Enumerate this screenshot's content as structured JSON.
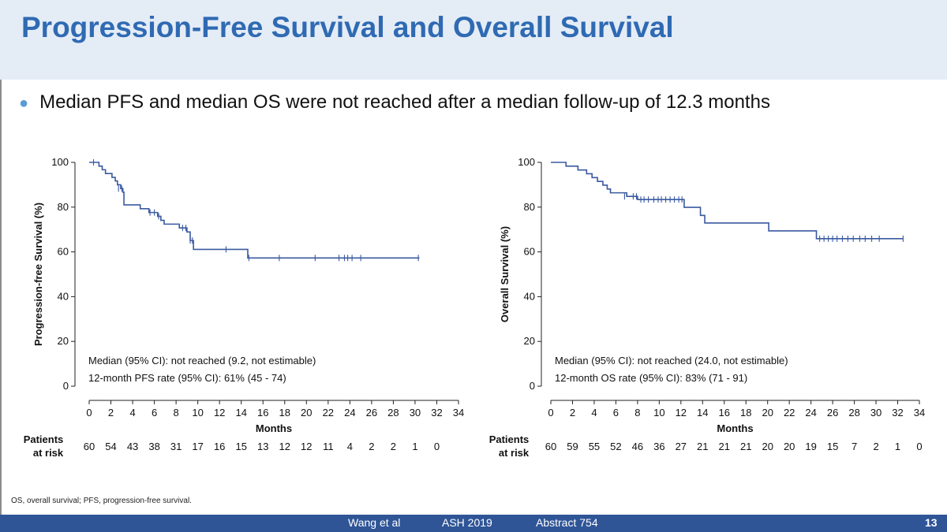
{
  "slide": {
    "title": "Progression-Free Survival and Overall Survival",
    "bullet": "Median PFS and median OS were not reached after a median follow-up of 12.3 months",
    "footnote": "OS, overall survival; PFS, progression-free survival.",
    "footer": {
      "author": "Wang et al",
      "meeting": "ASH 2019",
      "abstract": "Abstract 754",
      "page": "13"
    },
    "colors": {
      "title": "#2f6ab3",
      "title_band": "#e4ecf6",
      "curve": "#3a5aa0",
      "footer_bar": "#2f5597",
      "bullet": "#5b9bd5"
    }
  },
  "chart_data": [
    {
      "type": "line",
      "subtype": "kaplan-meier",
      "xlabel": "Months",
      "ylabel": "Progression-free Survival (%)",
      "xlim": [
        0,
        34
      ],
      "ylim": [
        0,
        100
      ],
      "xticks": [
        0,
        2,
        4,
        6,
        8,
        10,
        12,
        14,
        16,
        18,
        20,
        22,
        24,
        26,
        28,
        30,
        32,
        34
      ],
      "yticks": [
        0,
        20,
        40,
        60,
        80,
        100
      ],
      "steps": [
        [
          0,
          100
        ],
        [
          0.9,
          98.3
        ],
        [
          1.2,
          96.7
        ],
        [
          1.5,
          95
        ],
        [
          2.1,
          93.3
        ],
        [
          2.4,
          91.7
        ],
        [
          2.6,
          90
        ],
        [
          2.9,
          88.3
        ],
        [
          3.1,
          86.7
        ],
        [
          3.2,
          81
        ],
        [
          4.7,
          79.3
        ],
        [
          5.5,
          77.6
        ],
        [
          6.3,
          75.9
        ],
        [
          6.6,
          74.1
        ],
        [
          6.9,
          72.4
        ],
        [
          8.3,
          70.7
        ],
        [
          9.0,
          68.9
        ],
        [
          9.3,
          65.1
        ],
        [
          9.6,
          61.1
        ],
        [
          14.6,
          57.3
        ],
        [
          30.4,
          57.3
        ]
      ],
      "censored": [
        [
          0.4,
          100
        ],
        [
          2.7,
          88.3
        ],
        [
          3.0,
          88.3
        ],
        [
          5.6,
          77.6
        ],
        [
          6.0,
          77.6
        ],
        [
          6.4,
          75.9
        ],
        [
          8.6,
          70.7
        ],
        [
          8.9,
          70.7
        ],
        [
          9.3,
          65.1
        ],
        [
          9.5,
          65.1
        ],
        [
          12.6,
          61.1
        ],
        [
          14.7,
          57.3
        ],
        [
          17.5,
          57.3
        ],
        [
          20.8,
          57.3
        ],
        [
          23.0,
          57.3
        ],
        [
          23.5,
          57.3
        ],
        [
          23.8,
          57.3
        ],
        [
          24.2,
          57.3
        ],
        [
          25.0,
          57.3
        ],
        [
          30.3,
          57.3
        ]
      ],
      "annotation": [
        "Median (95% CI): not reached (9.2, not estimable)",
        "12-month PFS rate (95% CI): 61% (45 - 74)"
      ],
      "risk_label": [
        "Patients",
        "at risk"
      ],
      "at_risk": [
        "60",
        "54",
        "43",
        "38",
        "31",
        "17",
        "16",
        "15",
        "13",
        "12",
        "12",
        "11",
        "4",
        "2",
        "2",
        "1",
        "0"
      ]
    },
    {
      "type": "line",
      "subtype": "kaplan-meier",
      "xlabel": "Months",
      "ylabel": "Overall Survival (%)",
      "xlim": [
        0,
        34
      ],
      "ylim": [
        0,
        100
      ],
      "xticks": [
        0,
        2,
        4,
        6,
        8,
        10,
        12,
        14,
        16,
        18,
        20,
        22,
        24,
        26,
        28,
        30,
        32,
        34
      ],
      "yticks": [
        0,
        20,
        40,
        60,
        80,
        100
      ],
      "steps": [
        [
          0,
          100
        ],
        [
          1.4,
          98.3
        ],
        [
          2.5,
          96.6
        ],
        [
          3.3,
          94.9
        ],
        [
          3.8,
          93.2
        ],
        [
          4.3,
          91.5
        ],
        [
          4.8,
          89.8
        ],
        [
          5.2,
          88.1
        ],
        [
          5.5,
          86.4
        ],
        [
          7.0,
          84.8
        ],
        [
          8.0,
          83.4
        ],
        [
          12.3,
          79.9
        ],
        [
          13.8,
          76.3
        ],
        [
          14.2,
          72.9
        ],
        [
          20.1,
          69.4
        ],
        [
          24.5,
          65.9
        ],
        [
          32.5,
          65.9
        ]
      ],
      "censored": [
        [
          6.8,
          84.8
        ],
        [
          7.6,
          84.8
        ],
        [
          7.9,
          84.8
        ],
        [
          8.3,
          83.4
        ],
        [
          8.6,
          83.4
        ],
        [
          9.0,
          83.4
        ],
        [
          9.5,
          83.4
        ],
        [
          9.9,
          83.4
        ],
        [
          10.2,
          83.4
        ],
        [
          10.6,
          83.4
        ],
        [
          11.0,
          83.4
        ],
        [
          11.4,
          83.4
        ],
        [
          11.8,
          83.4
        ],
        [
          12.1,
          83.4
        ],
        [
          24.8,
          65.9
        ],
        [
          25.2,
          65.9
        ],
        [
          25.6,
          65.9
        ],
        [
          26.0,
          65.9
        ],
        [
          26.4,
          65.9
        ],
        [
          26.9,
          65.9
        ],
        [
          27.4,
          65.9
        ],
        [
          27.9,
          65.9
        ],
        [
          28.5,
          65.9
        ],
        [
          29.0,
          65.9
        ],
        [
          29.6,
          65.9
        ],
        [
          30.3,
          65.9
        ],
        [
          32.5,
          65.9
        ]
      ],
      "annotation": [
        "Median (95% CI): not reached (24.0, not estimable)",
        "12-month OS rate (95% CI): 83% (71 - 91)"
      ],
      "risk_label": [
        "Patients",
        "at risk"
      ],
      "at_risk": [
        "60",
        "59",
        "55",
        "52",
        "46",
        "36",
        "27",
        "21",
        "21",
        "21",
        "20",
        "20",
        "19",
        "15",
        "7",
        "2",
        "1",
        "0"
      ]
    }
  ]
}
